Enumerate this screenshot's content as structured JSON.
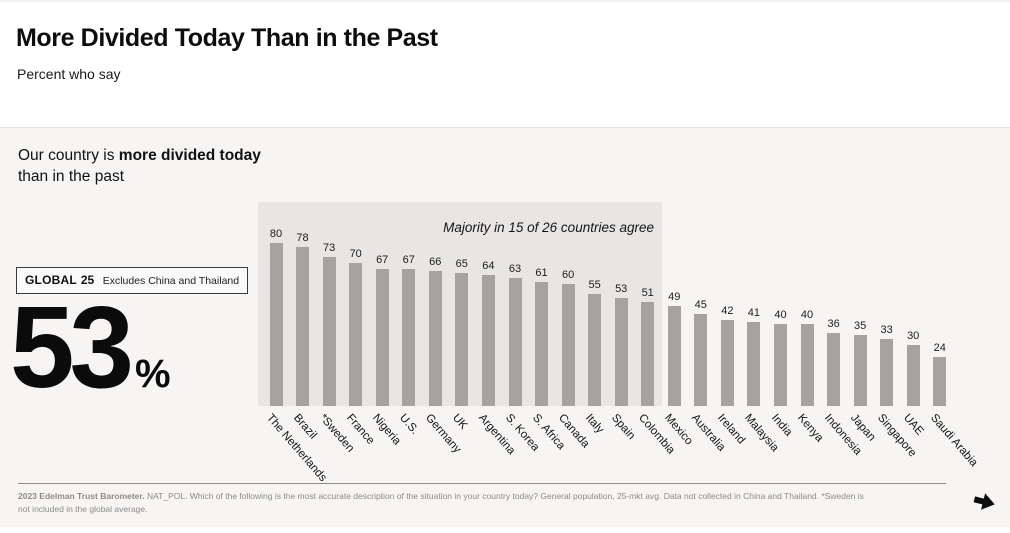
{
  "header": {
    "title": "More Divided Today Than in the Past",
    "subtitle": "Percent who say"
  },
  "statement": {
    "prefix": "Our country is ",
    "bold": "more divided today",
    "line2": "than in the past"
  },
  "global_badge": {
    "label": "GLOBAL",
    "count": "25",
    "note": "Excludes China and Thailand"
  },
  "global_value": {
    "number": "53",
    "unit": "%"
  },
  "chart_data": {
    "type": "bar",
    "title": "Our country is more divided today than in the past",
    "annotation": "Majority in 15 of 26 countries agree",
    "categories": [
      "The Netherlands",
      "Brazil",
      "*Sweden",
      "France",
      "Nigeria",
      "U.S.",
      "Germany",
      "UK",
      "Argentina",
      "S. Korea",
      "S. Africa",
      "Canada",
      "Italy",
      "Spain",
      "Colombia",
      "Mexico",
      "Australia",
      "Ireland",
      "Malaysia",
      "India",
      "Kenya",
      "Indonesia",
      "Japan",
      "Singapore",
      "UAE",
      "Saudi Arabia"
    ],
    "values": [
      80,
      78,
      73,
      70,
      67,
      67,
      66,
      65,
      64,
      63,
      61,
      60,
      55,
      53,
      51,
      49,
      45,
      42,
      41,
      40,
      40,
      36,
      35,
      33,
      30,
      24
    ],
    "highlight_count": 15,
    "xlabel": "",
    "ylabel": "Percent who say",
    "ylim": [
      0,
      100
    ],
    "grid": false,
    "legend": false,
    "bar_color": "#a4a3a1",
    "highlight_bg": "#e8e6e4"
  },
  "footer": {
    "source_bold": "2023 Edelman Trust Barometer.",
    "source_text": " NAT_POL. Which of the following is the most accurate description of the situation in your country today? General population, 25-mkt avg. Data not collected in China and Thailand. *Sweden is not included in the global average.",
    "next_icon": "arrow-right-icon"
  }
}
